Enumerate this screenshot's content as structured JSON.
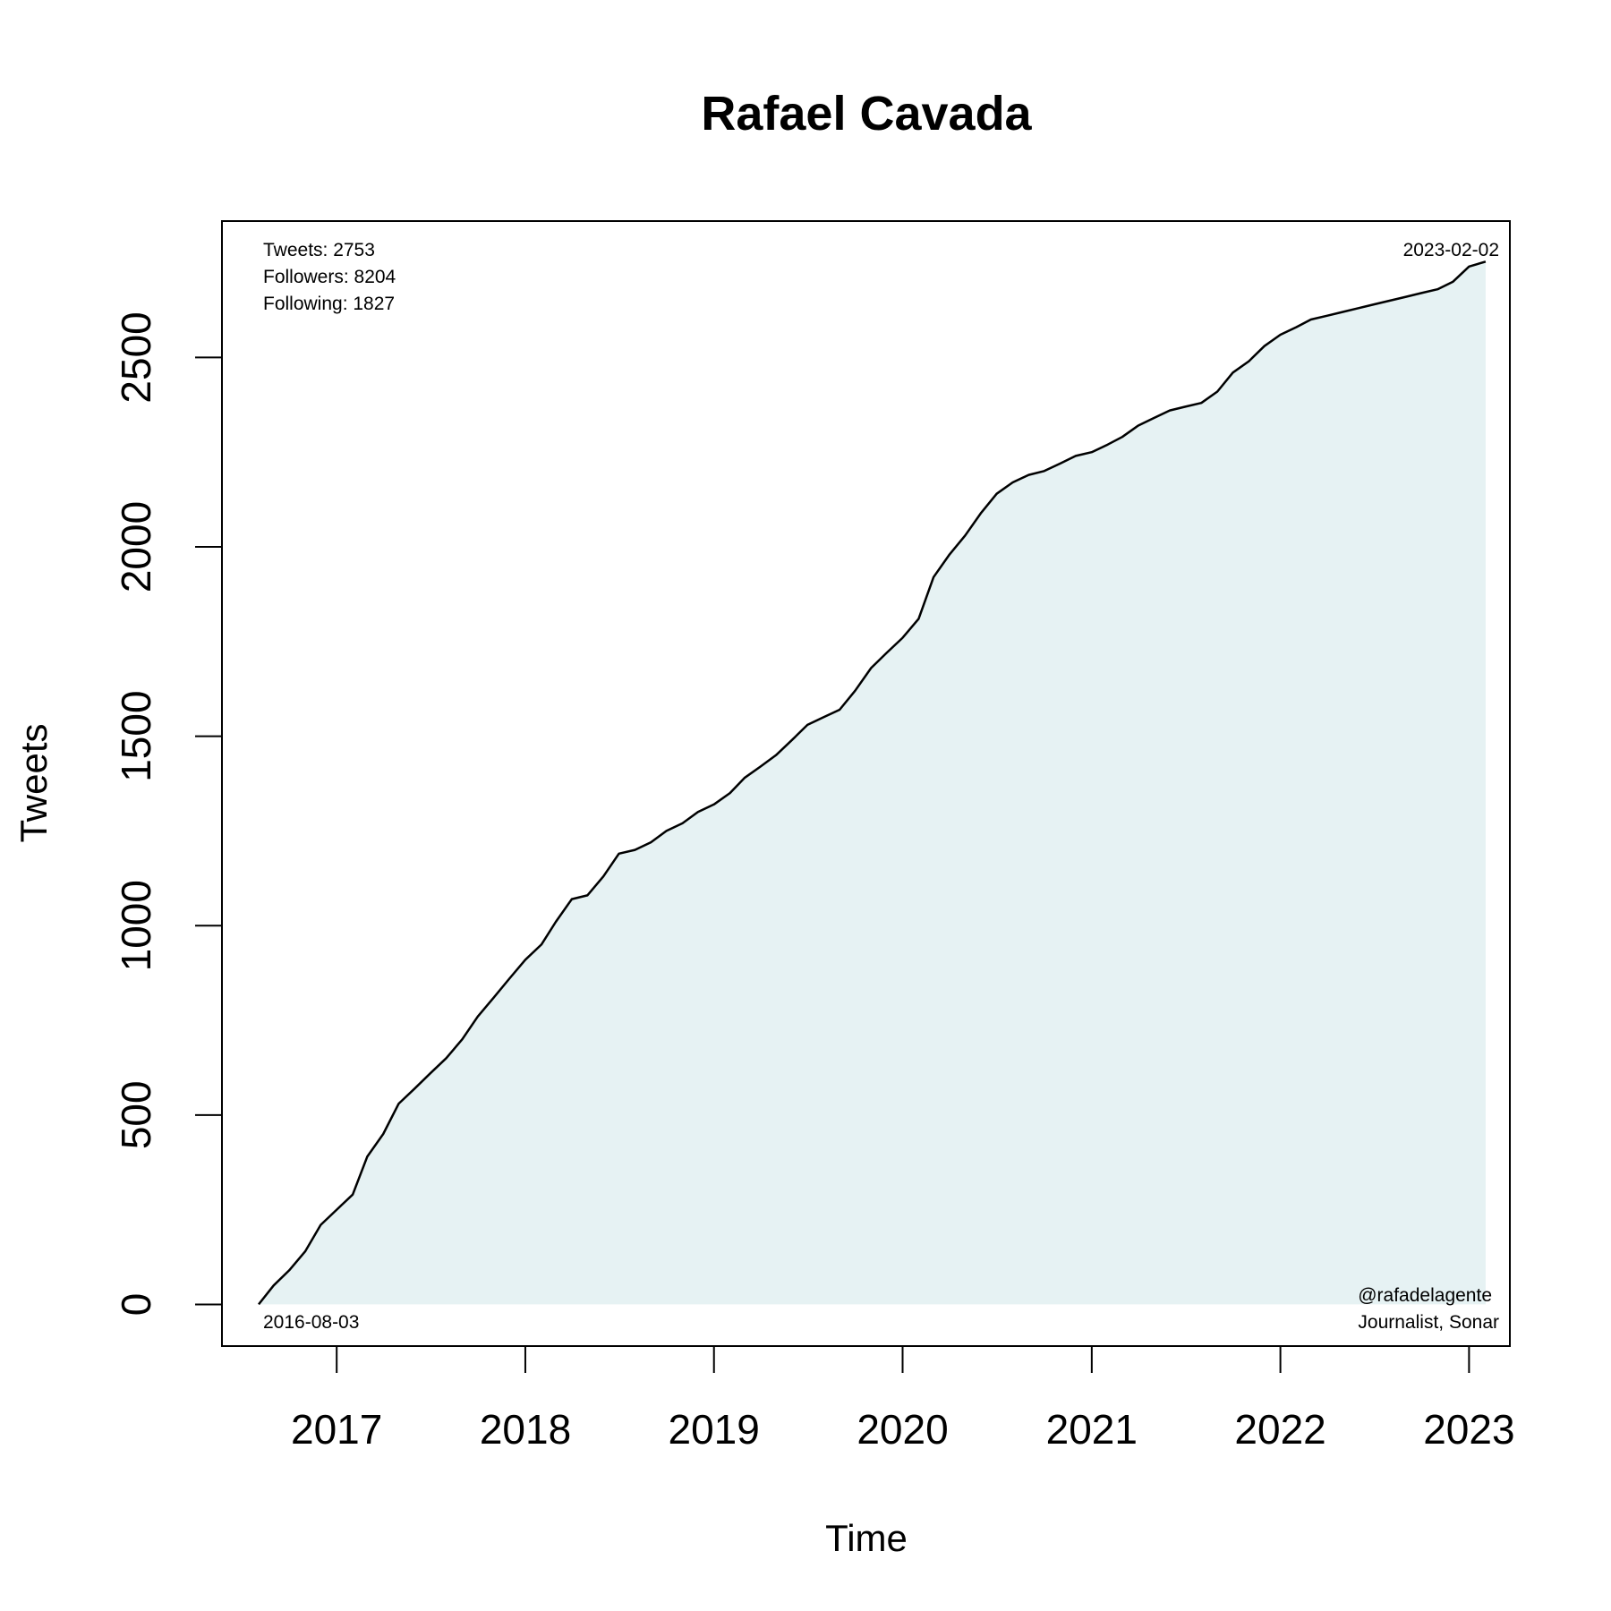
{
  "chart_data": {
    "type": "area",
    "title": "Rafael Cavada",
    "xlabel": "Time",
    "ylabel": "Tweets",
    "x_ticks": [
      "2017",
      "2018",
      "2019",
      "2020",
      "2021",
      "2022",
      "2023"
    ],
    "y_ticks": [
      "0",
      "500",
      "1000",
      "1500",
      "2000",
      "2500"
    ],
    "ylim": [
      -110,
      2860
    ],
    "xlim": [
      "2016-05-24",
      "2023-03-21"
    ],
    "grid": false,
    "colors": {
      "fill": "#e6f2f3",
      "line": "#000000"
    },
    "stats": {
      "tweets": "Tweets: 2753",
      "followers": "Followers: 8204",
      "following": "Following: 1827"
    },
    "start_label": "2016-08-03",
    "end_label": "2023-02-02",
    "handle": "@rafadelagente",
    "bio": "Journalist, Sonar",
    "series": [
      {
        "x": [
          "2016-08-03",
          "2016-09-01",
          "2016-10-01",
          "2016-11-01",
          "2016-12-01",
          "2017-01-01",
          "2017-02-01",
          "2017-03-01",
          "2017-04-01",
          "2017-05-01",
          "2017-06-01",
          "2017-07-01",
          "2017-08-01",
          "2017-09-01",
          "2017-10-01",
          "2017-11-01",
          "2017-12-01",
          "2018-01-01",
          "2018-02-01",
          "2018-03-01",
          "2018-04-01",
          "2018-05-01",
          "2018-06-01",
          "2018-07-01",
          "2018-08-01",
          "2018-09-01",
          "2018-10-01",
          "2018-11-01",
          "2018-12-01",
          "2019-01-01",
          "2019-02-01",
          "2019-03-01",
          "2019-04-01",
          "2019-05-01",
          "2019-06-01",
          "2019-07-01",
          "2019-08-01",
          "2019-09-01",
          "2019-10-01",
          "2019-11-01",
          "2019-12-01",
          "2020-01-01",
          "2020-02-01",
          "2020-03-01",
          "2020-04-01",
          "2020-05-01",
          "2020-06-01",
          "2020-07-01",
          "2020-08-01",
          "2020-09-01",
          "2020-10-01",
          "2020-11-01",
          "2020-12-01",
          "2021-01-01",
          "2021-02-01",
          "2021-03-01",
          "2021-04-01",
          "2021-05-01",
          "2021-06-01",
          "2021-07-01",
          "2021-08-01",
          "2021-09-01",
          "2021-10-01",
          "2021-11-01",
          "2021-12-01",
          "2022-01-01",
          "2022-02-01",
          "2022-03-01",
          "2022-04-01",
          "2022-05-01",
          "2022-06-01",
          "2022-07-01",
          "2022-08-01",
          "2022-09-01",
          "2022-10-01",
          "2022-11-01",
          "2022-12-01",
          "2023-01-01",
          "2023-02-02"
        ],
        "values": [
          0,
          50,
          90,
          140,
          210,
          250,
          290,
          390,
          450,
          530,
          570,
          610,
          650,
          700,
          760,
          810,
          860,
          910,
          950,
          1010,
          1070,
          1080,
          1130,
          1190,
          1200,
          1220,
          1250,
          1270,
          1300,
          1320,
          1350,
          1390,
          1420,
          1450,
          1490,
          1530,
          1550,
          1570,
          1620,
          1680,
          1720,
          1760,
          1810,
          1920,
          1980,
          2030,
          2090,
          2140,
          2170,
          2190,
          2200,
          2220,
          2240,
          2250,
          2270,
          2290,
          2320,
          2340,
          2360,
          2370,
          2380,
          2410,
          2460,
          2490,
          2530,
          2560,
          2580,
          2600,
          2610,
          2620,
          2630,
          2640,
          2650,
          2660,
          2670,
          2680,
          2700,
          2740,
          2753
        ]
      }
    ]
  }
}
